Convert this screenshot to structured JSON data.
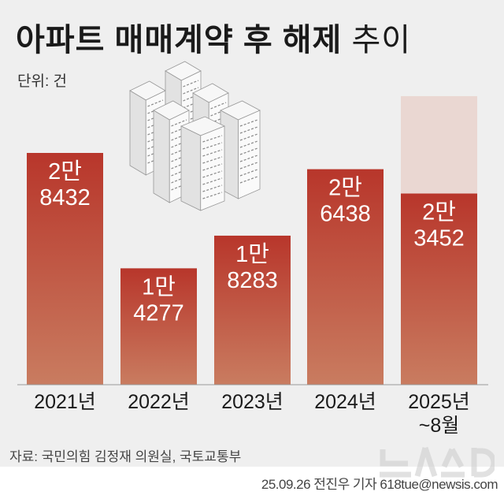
{
  "title": {
    "bold": "아파트 매매계약 후 해제",
    "light": "추이"
  },
  "unit_label": "단위: 건",
  "source": "자료: 국민의힘 김정재 의원실, 국토교통부",
  "credit": "25.09.26 전진우 기자 618tue@newsis.com",
  "watermark": "뉴시스",
  "colors": {
    "bar_top": "#b8362b",
    "bar_bottom": "#c97c60",
    "projection": "#ead7d2",
    "background": "#efefef"
  },
  "chart_data": {
    "type": "bar",
    "title": "아파트 매매계약 후 해제 추이",
    "ylabel": "단위: 건",
    "xlabel": "",
    "ylim": [
      0,
      36000
    ],
    "grid": false,
    "categories": [
      "2021년",
      "2022년",
      "2023년",
      "2024년",
      "2025년 ~8월"
    ],
    "values": [
      28432,
      14277,
      18283,
      26438,
      23452
    ],
    "value_labels": [
      [
        "2만",
        "8432"
      ],
      [
        "1만",
        "4277"
      ],
      [
        "1만",
        "8283"
      ],
      [
        "2만",
        "6438"
      ],
      [
        "2만",
        "3452"
      ]
    ],
    "projection": {
      "category": "2025년 ~8월",
      "value": 35400
    }
  }
}
